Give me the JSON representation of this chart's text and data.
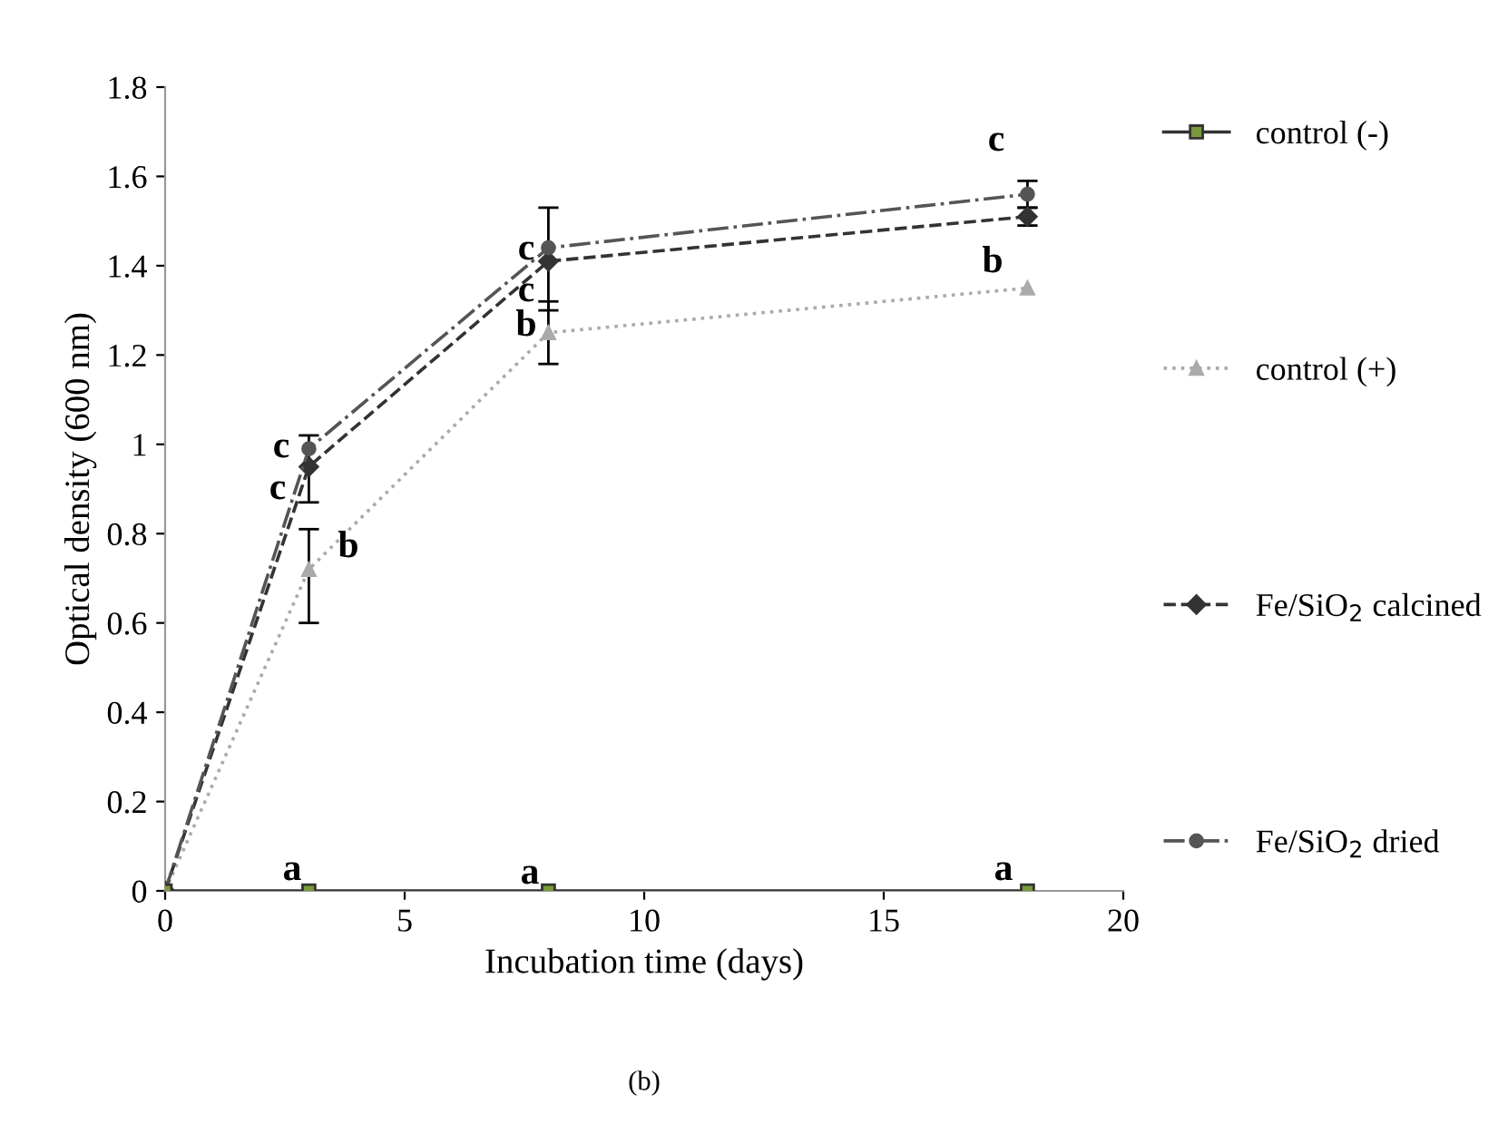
{
  "chart_data": {
    "type": "line",
    "xlabel": "Incubation time (days)",
    "ylabel": "Optical density (600 nm)",
    "xlim": [
      0,
      20
    ],
    "xticks": [
      0,
      5,
      10,
      15,
      20
    ],
    "ylim": [
      0,
      1.8
    ],
    "yticks": [
      0,
      0.2,
      0.4,
      0.6,
      0.8,
      1,
      1.2,
      1.4,
      1.6,
      1.8
    ],
    "grid": false,
    "legend": "right",
    "series": [
      {
        "name": "control (-)",
        "color": "#333333",
        "marker": "square",
        "line_style": "solid",
        "x": [
          0,
          3,
          8,
          18
        ],
        "values": [
          0,
          0,
          0,
          0
        ]
      },
      {
        "name": "control (+)",
        "color": "#aaaaaa",
        "marker": "triangle",
        "line_style": "dotted",
        "x": [
          0,
          3,
          8,
          18
        ],
        "values": [
          0,
          0.72,
          1.25,
          1.35
        ],
        "errors": [
          null,
          [
            0.6,
            0.81
          ],
          [
            1.18,
            1.32
          ],
          null
        ]
      },
      {
        "name": "Fe/SiO$_{2}$ calcined",
        "color": "#333333",
        "marker": "diamond",
        "line_style": "dashed",
        "x": [
          0,
          3,
          8,
          18
        ],
        "values": [
          0,
          0.95,
          1.41,
          1.51
        ],
        "errors": [
          null,
          [
            0.87,
            1.02
          ],
          [
            1.3,
            1.53
          ],
          [
            1.49,
            1.53
          ]
        ]
      },
      {
        "name": "Fe/SiO$_{2}$ dried",
        "color": "#555555",
        "marker": "circle",
        "line_style": "dashdot",
        "x": [
          0,
          3,
          8,
          18
        ],
        "values": [
          0,
          0.99,
          1.44,
          1.56
        ],
        "errors": [
          null,
          null,
          null,
          [
            1.53,
            1.59
          ]
        ]
      }
    ],
    "annotations": [
      "c",
      "c",
      "b",
      "c",
      "c",
      "b",
      "c",
      "b",
      "a",
      "a",
      "a",
      "(b)"
    ]
  }
}
